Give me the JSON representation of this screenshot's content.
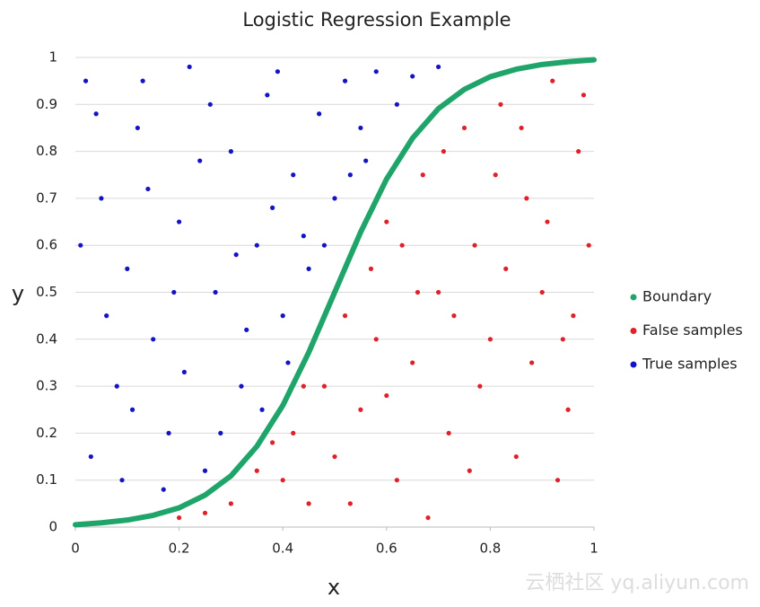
{
  "chart_data": {
    "type": "scatter",
    "title": "Logistic Regression Example",
    "x_label": "x",
    "y_label": "y",
    "xlim": [
      0,
      1
    ],
    "ylim": [
      0,
      1
    ],
    "xticks": [
      0,
      0.2,
      0.4,
      0.6,
      0.8,
      1
    ],
    "yticks": [
      0,
      0.1,
      0.2,
      0.3,
      0.4,
      0.5,
      0.6,
      0.7,
      0.8,
      0.9,
      1
    ],
    "grid": true,
    "legend": "right",
    "watermark": "云栖社区 yq.aliyun.com",
    "series": [
      {
        "name": "Boundary",
        "color": "#1fa46a",
        "style": "line",
        "x": [
          0,
          0.05,
          0.1,
          0.15,
          0.2,
          0.25,
          0.3,
          0.35,
          0.4,
          0.45,
          0.5,
          0.55,
          0.6,
          0.65,
          0.7,
          0.75,
          0.8,
          0.85,
          0.9,
          0.95,
          1
        ],
        "y": [
          0.005,
          0.009,
          0.015,
          0.025,
          0.041,
          0.068,
          0.109,
          0.172,
          0.259,
          0.372,
          0.5,
          0.628,
          0.741,
          0.828,
          0.891,
          0.932,
          0.959,
          0.975,
          0.985,
          0.991,
          0.995
        ]
      },
      {
        "name": "False samples",
        "color": "#e0202a",
        "style": "points",
        "x": [
          0.3,
          0.35,
          0.4,
          0.42,
          0.45,
          0.48,
          0.5,
          0.52,
          0.55,
          0.57,
          0.6,
          0.62,
          0.65,
          0.67,
          0.7,
          0.72,
          0.75,
          0.77,
          0.8,
          0.82,
          0.85,
          0.87,
          0.9,
          0.92,
          0.95,
          0.97,
          0.99,
          0.25,
          0.2,
          0.38,
          0.44,
          0.53,
          0.58,
          0.63,
          0.68,
          0.73,
          0.78,
          0.83,
          0.88,
          0.93,
          0.96,
          0.98,
          0.6,
          0.66,
          0.71,
          0.76,
          0.81,
          0.86,
          0.91,
          0.94
        ],
        "y": [
          0.05,
          0.12,
          0.1,
          0.2,
          0.05,
          0.3,
          0.15,
          0.45,
          0.25,
          0.55,
          0.65,
          0.1,
          0.35,
          0.75,
          0.5,
          0.2,
          0.85,
          0.6,
          0.4,
          0.9,
          0.15,
          0.7,
          0.5,
          0.95,
          0.25,
          0.8,
          0.6,
          0.03,
          0.02,
          0.18,
          0.3,
          0.05,
          0.4,
          0.6,
          0.02,
          0.45,
          0.3,
          0.55,
          0.35,
          0.1,
          0.45,
          0.92,
          0.28,
          0.5,
          0.8,
          0.12,
          0.75,
          0.85,
          0.65,
          0.4
        ]
      },
      {
        "name": "True samples",
        "color": "#1414c4",
        "style": "points",
        "x": [
          0.02,
          0.05,
          0.08,
          0.03,
          0.1,
          0.12,
          0.15,
          0.18,
          0.2,
          0.22,
          0.25,
          0.27,
          0.3,
          0.32,
          0.35,
          0.37,
          0.4,
          0.42,
          0.45,
          0.47,
          0.5,
          0.52,
          0.55,
          0.58,
          0.62,
          0.65,
          0.7,
          0.06,
          0.09,
          0.14,
          0.17,
          0.21,
          0.24,
          0.28,
          0.33,
          0.36,
          0.38,
          0.41,
          0.44,
          0.48,
          0.53,
          0.56,
          0.01,
          0.04,
          0.11,
          0.13,
          0.19,
          0.26,
          0.31,
          0.39
        ],
        "y": [
          0.95,
          0.7,
          0.3,
          0.15,
          0.55,
          0.85,
          0.4,
          0.2,
          0.65,
          0.98,
          0.12,
          0.5,
          0.8,
          0.3,
          0.6,
          0.92,
          0.45,
          0.75,
          0.55,
          0.88,
          0.7,
          0.95,
          0.85,
          0.97,
          0.9,
          0.96,
          0.98,
          0.45,
          0.1,
          0.72,
          0.08,
          0.33,
          0.78,
          0.2,
          0.42,
          0.25,
          0.68,
          0.35,
          0.62,
          0.6,
          0.75,
          0.78,
          0.6,
          0.88,
          0.25,
          0.95,
          0.5,
          0.9,
          0.58,
          0.97
        ]
      }
    ]
  }
}
